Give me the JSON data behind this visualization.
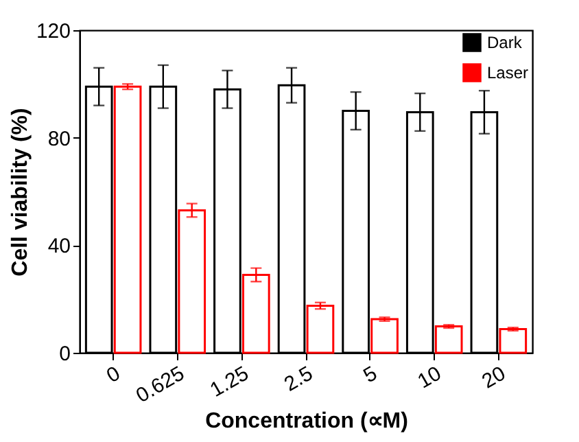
{
  "chart_data": {
    "type": "bar",
    "xlabel": "Concentration (∝M)",
    "ylabel": "Cell viability (%)",
    "categories": [
      "0",
      "0.625",
      "1.25",
      "2.5",
      "5",
      "10",
      "20"
    ],
    "series": [
      {
        "name": "Dark",
        "color": "#000000",
        "values": [
          99,
          99,
          98,
          99.5,
          90,
          89.5,
          89.5
        ],
        "errors": [
          7,
          8,
          7,
          6.5,
          7,
          7,
          8
        ]
      },
      {
        "name": "Laser",
        "color": "#ff0000",
        "values": [
          99,
          53,
          29,
          17.5,
          12.5,
          9.8,
          8.8
        ],
        "errors": [
          1,
          2.5,
          2.5,
          1.2,
          0.7,
          0.6,
          0.6
        ]
      }
    ],
    "ylim": [
      0,
      120
    ],
    "yticks": [
      0,
      40,
      80,
      120
    ],
    "grid": false,
    "legend": "top right"
  }
}
